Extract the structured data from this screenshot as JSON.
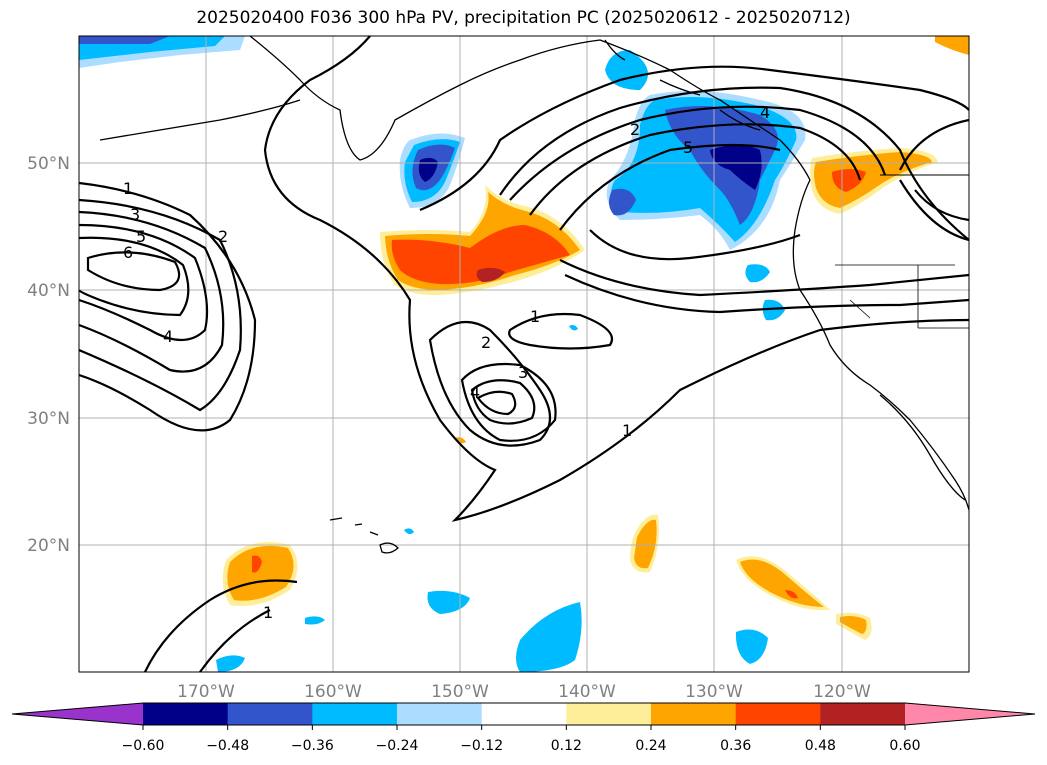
{
  "chart_data": {
    "type": "map",
    "title": "2025020400 F036 300 hPa PV, precipitation PC (2025020612 - 2025020712)",
    "lon_ticks": [
      "170°W",
      "160°W",
      "150°W",
      "140°W",
      "130°W",
      "120°W"
    ],
    "lat_ticks": [
      "50°N",
      "40°N",
      "30°N",
      "20°N"
    ],
    "extent": {
      "lon": [
        -180,
        -110
      ],
      "lat": [
        10,
        60
      ]
    },
    "grid": true,
    "colorbar": {
      "orientation": "horizontal",
      "extend": "both",
      "levels": [
        -0.6,
        -0.48,
        -0.36,
        -0.24,
        -0.12,
        0.12,
        0.24,
        0.36,
        0.48,
        0.6
      ],
      "tick_labels": [
        "−0.60",
        "−0.48",
        "−0.36",
        "−0.24",
        "−0.12",
        "0.12",
        "0.24",
        "0.36",
        "0.48",
        "0.60"
      ],
      "colors": [
        "#9933cc",
        "#000088",
        "#3355cc",
        "#00bbff",
        "#aaddff",
        "#ffffff",
        "#ffee99",
        "#ffa500",
        "#ff4400",
        "#b22222",
        "#ff88aa"
      ]
    },
    "pv_contour_labels": [
      "1",
      "3",
      "5",
      "6",
      "2",
      "4",
      "2",
      "5",
      "4",
      "1",
      "2",
      "3",
      "4",
      "1",
      "1"
    ]
  }
}
